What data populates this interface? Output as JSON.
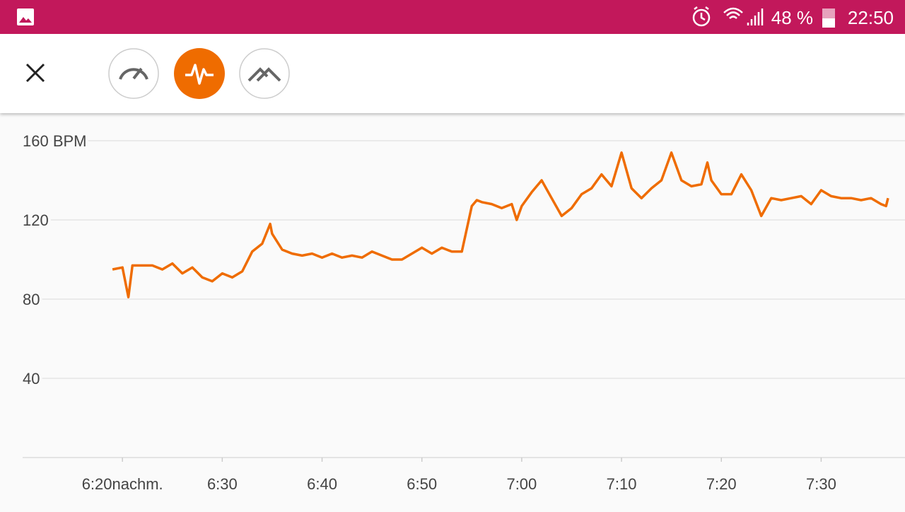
{
  "status_bar": {
    "battery": "48 %",
    "time": "22:50"
  },
  "chart_data": {
    "type": "line",
    "color": "#ef6c00",
    "grid": true,
    "x": [
      1099,
      1100,
      1100.6,
      1101,
      1102,
      1103,
      1104,
      1105,
      1106,
      1107,
      1108,
      1109,
      1110,
      1111,
      1112,
      1113,
      1114,
      1114.8,
      1115,
      1116,
      1117,
      1118,
      1119,
      1120,
      1121,
      1122,
      1123,
      1124,
      1125,
      1126,
      1127,
      1128,
      1129,
      1130,
      1131,
      1132,
      1133,
      1134,
      1135,
      1135.5,
      1136,
      1137,
      1138,
      1139,
      1139.5,
      1140,
      1141,
      1142,
      1143,
      1144,
      1145,
      1146,
      1147,
      1148,
      1149,
      1150,
      1151,
      1152,
      1153,
      1154,
      1155,
      1156,
      1157,
      1158,
      1158.6,
      1159,
      1160,
      1161,
      1162,
      1163,
      1164,
      1165,
      1166,
      1167,
      1168,
      1169,
      1170,
      1171,
      1172,
      1173,
      1174,
      1175,
      1176,
      1176.5,
      1176.7
    ],
    "values": [
      95,
      96,
      81,
      97,
      97,
      97,
      95,
      98,
      93,
      96,
      91,
      89,
      93,
      91,
      94,
      104,
      108,
      118,
      113,
      105,
      103,
      102,
      103,
      101,
      103,
      101,
      102,
      101,
      104,
      102,
      100,
      100,
      103,
      106,
      103,
      106,
      104,
      104,
      127,
      130,
      129,
      128,
      126,
      128,
      120,
      127,
      134,
      140,
      131,
      122,
      126,
      133,
      136,
      143,
      137,
      154,
      136,
      131,
      136,
      140,
      154,
      140,
      137,
      138,
      149,
      140,
      133,
      133,
      143,
      135,
      122,
      131,
      130,
      131,
      132,
      128,
      135,
      132,
      131,
      131,
      130,
      131,
      128,
      127,
      131
    ],
    "xlim": [
      1090,
      1178.4
    ],
    "ylim": [
      0,
      160
    ],
    "yticks": [
      40,
      80,
      120,
      {
        "value": 160,
        "label": "160 BPM"
      }
    ],
    "xticks": [
      {
        "value": 1100,
        "label": "6:20nachm."
      },
      {
        "value": 1110,
        "label": "6:30"
      },
      {
        "value": 1120,
        "label": "6:40"
      },
      {
        "value": 1130,
        "label": "6:50"
      },
      {
        "value": 1140,
        "label": "7:00"
      },
      {
        "value": 1150,
        "label": "7:10"
      },
      {
        "value": 1160,
        "label": "7:20"
      },
      {
        "value": 1170,
        "label": "7:30"
      }
    ]
  }
}
